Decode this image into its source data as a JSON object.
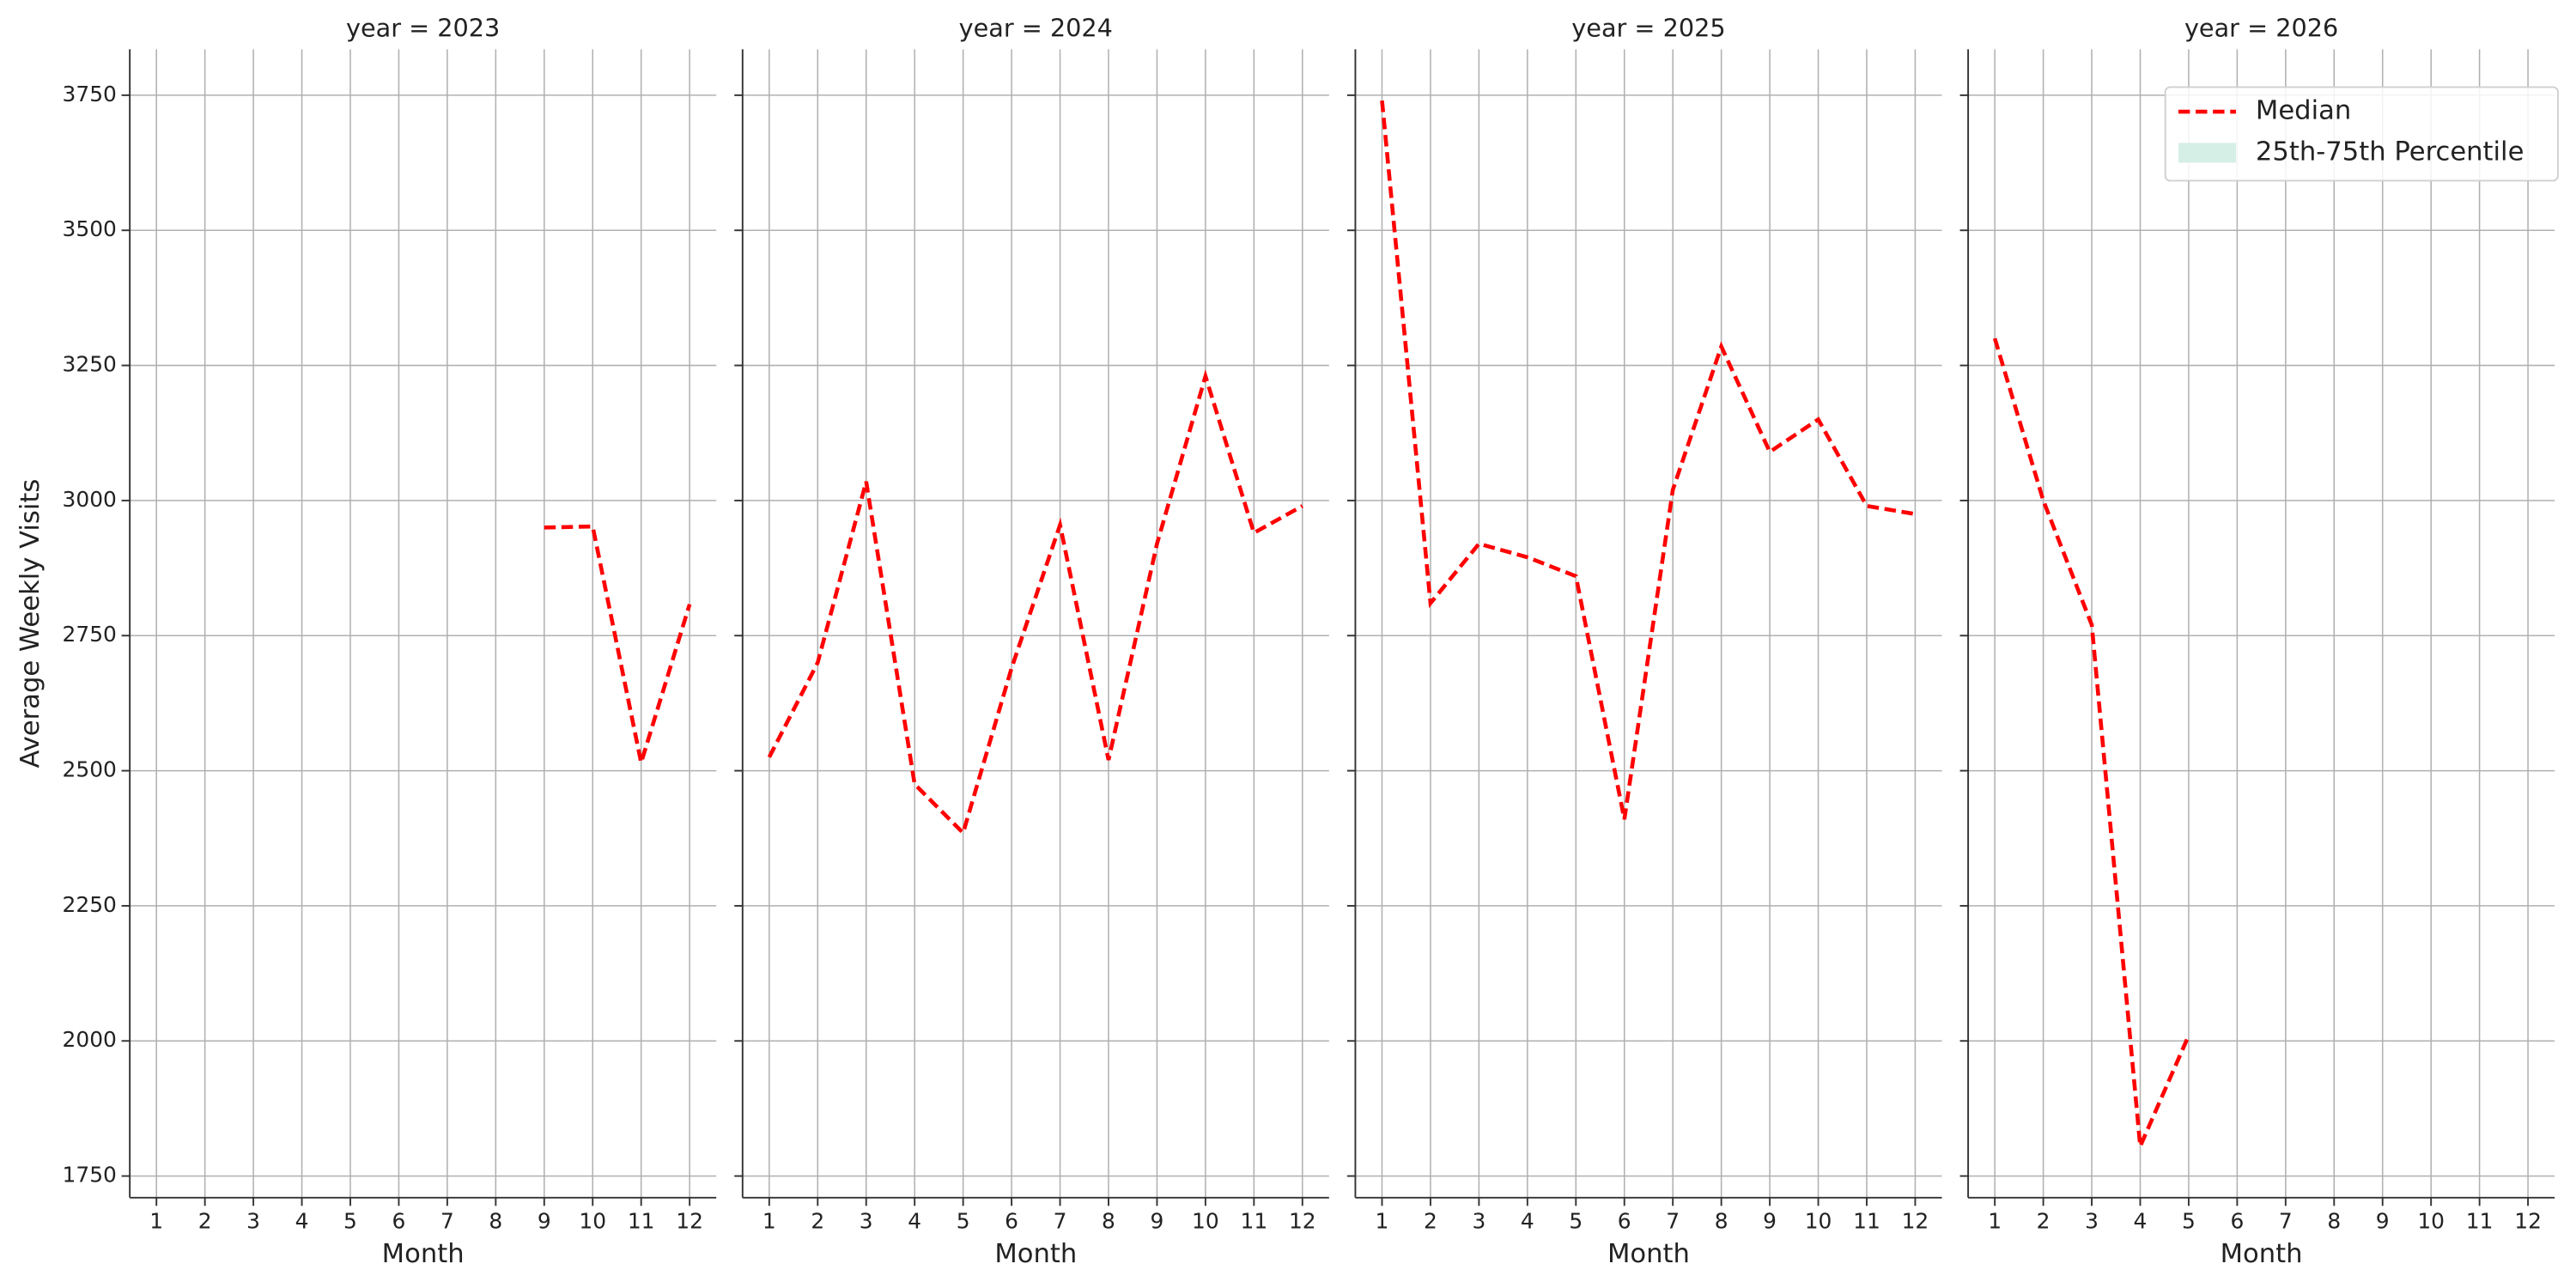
{
  "chart_data": [
    {
      "type": "line",
      "title": "year = 2023",
      "xlabel": "Month",
      "ylabel": "Average Weekly Visits",
      "x": [
        1,
        2,
        3,
        4,
        5,
        6,
        7,
        8,
        9,
        10,
        11,
        12
      ],
      "xlim": [
        0.45,
        12.55
      ],
      "xticks": [
        1,
        2,
        3,
        4,
        5,
        6,
        7,
        8,
        9,
        10,
        11,
        12
      ],
      "ylim": [
        1710,
        3835
      ],
      "yticks": [
        1750,
        2000,
        2250,
        2500,
        2750,
        3000,
        3250,
        3500,
        3750
      ],
      "grid": true,
      "series": [
        {
          "name": "Median",
          "color": "#ff0000",
          "values": [
            null,
            null,
            null,
            null,
            null,
            null,
            null,
            null,
            2950,
            2952,
            2515,
            2808
          ]
        }
      ]
    },
    {
      "type": "line",
      "title": "year = 2024",
      "xlabel": "Month",
      "x": [
        1,
        2,
        3,
        4,
        5,
        6,
        7,
        8,
        9,
        10,
        11,
        12
      ],
      "xlim": [
        0.45,
        12.55
      ],
      "xticks": [
        1,
        2,
        3,
        4,
        5,
        6,
        7,
        8,
        9,
        10,
        11,
        12
      ],
      "ylim": [
        1710,
        3835
      ],
      "yticks": [
        1750,
        2000,
        2250,
        2500,
        2750,
        3000,
        3250,
        3500,
        3750
      ],
      "grid": true,
      "series": [
        {
          "name": "Median",
          "color": "#ff0000",
          "values": [
            2525,
            2700,
            3035,
            2475,
            2385,
            2690,
            2955,
            2520,
            2920,
            3230,
            2940,
            2990
          ]
        }
      ]
    },
    {
      "type": "line",
      "title": "year = 2025",
      "xlabel": "Month",
      "x": [
        1,
        2,
        3,
        4,
        5,
        6,
        7,
        8,
        9,
        10,
        11,
        12
      ],
      "xlim": [
        0.45,
        12.55
      ],
      "xticks": [
        1,
        2,
        3,
        4,
        5,
        6,
        7,
        8,
        9,
        10,
        11,
        12
      ],
      "ylim": [
        1710,
        3835
      ],
      "yticks": [
        1750,
        2000,
        2250,
        2500,
        2750,
        3000,
        3250,
        3500,
        3750
      ],
      "grid": true,
      "series": [
        {
          "name": "Median",
          "color": "#ff0000",
          "values": [
            3740,
            2810,
            2920,
            2895,
            2860,
            2410,
            3020,
            3285,
            3090,
            3150,
            2990,
            2975
          ]
        }
      ]
    },
    {
      "type": "line",
      "title": "year = 2026",
      "xlabel": "Month",
      "x": [
        1,
        2,
        3,
        4,
        5,
        6,
        7,
        8,
        9,
        10,
        11,
        12
      ],
      "xlim": [
        0.45,
        12.55
      ],
      "xticks": [
        1,
        2,
        3,
        4,
        5,
        6,
        7,
        8,
        9,
        10,
        11,
        12
      ],
      "ylim": [
        1710,
        3835
      ],
      "yticks": [
        1750,
        2000,
        2250,
        2500,
        2750,
        3000,
        3250,
        3500,
        3750
      ],
      "grid": true,
      "legend": "upper right",
      "series": [
        {
          "name": "Median",
          "color": "#ff0000",
          "values": [
            3300,
            3000,
            2770,
            1805,
            2010,
            null,
            null,
            null,
            null,
            null,
            null,
            null
          ]
        },
        {
          "name": "25th-75th Percentile",
          "color": "#d6efe6",
          "values": [
            null,
            null,
            null,
            null,
            null,
            null,
            null,
            null,
            null,
            null,
            null,
            null
          ]
        }
      ]
    }
  ]
}
